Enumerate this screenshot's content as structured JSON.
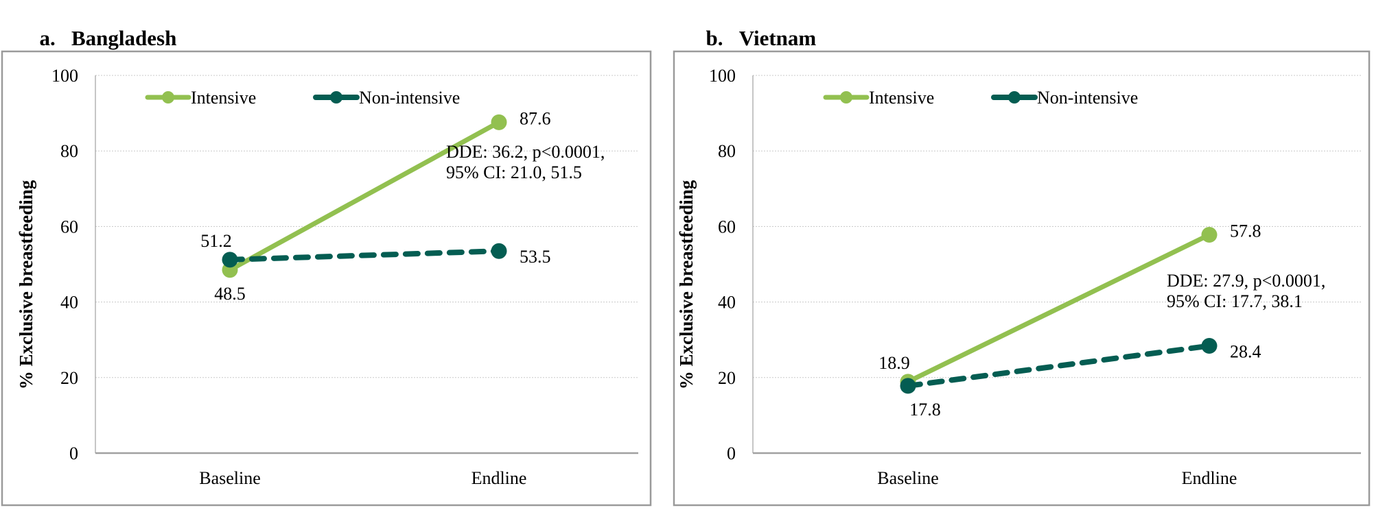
{
  "figure": {
    "panels": [
      {
        "letter": "a.",
        "title": "Bangladesh"
      },
      {
        "letter": "b.",
        "title": "Vietnam"
      }
    ]
  },
  "chart_data": [
    {
      "type": "line",
      "title": "a.   Bangladesh",
      "xlabel": "",
      "ylabel": "% Exclusive breastfeeding",
      "categories": [
        "Baseline",
        "Endline"
      ],
      "ylim": [
        0,
        100
      ],
      "yticks": [
        0,
        20,
        40,
        60,
        80,
        100
      ],
      "grid": true,
      "legend": "top-left",
      "series": [
        {
          "name": "Intensive",
          "values": [
            48.5,
            87.6
          ],
          "color": "#92c050",
          "style": "solid",
          "labels": [
            "48.5",
            "87.6"
          ]
        },
        {
          "name": "Non-intensive",
          "values": [
            51.2,
            53.5
          ],
          "color": "#045d52",
          "style": "dashed",
          "labels": [
            "51.2",
            "53.5"
          ]
        }
      ],
      "annotation": [
        "DDE: 36.2, p<0.0001,",
        "95% CI: 21.0, 51.5"
      ]
    },
    {
      "type": "line",
      "title": "b.   Vietnam",
      "xlabel": "",
      "ylabel": "% Exclusive breastfeeding",
      "categories": [
        "Baseline",
        "Endline"
      ],
      "ylim": [
        0,
        100
      ],
      "yticks": [
        0,
        20,
        40,
        60,
        80,
        100
      ],
      "grid": true,
      "legend": "top-left",
      "series": [
        {
          "name": "Intensive",
          "values": [
            18.9,
            57.8
          ],
          "color": "#92c050",
          "style": "solid",
          "labels": [
            "18.9",
            "57.8"
          ]
        },
        {
          "name": "Non-intensive",
          "values": [
            17.8,
            28.4
          ],
          "color": "#045d52",
          "style": "dashed",
          "labels": [
            "17.8",
            "28.4"
          ]
        }
      ],
      "annotation": [
        "DDE: 27.9, p<0.0001,",
        "95% CI: 17.7, 38.1"
      ]
    }
  ]
}
